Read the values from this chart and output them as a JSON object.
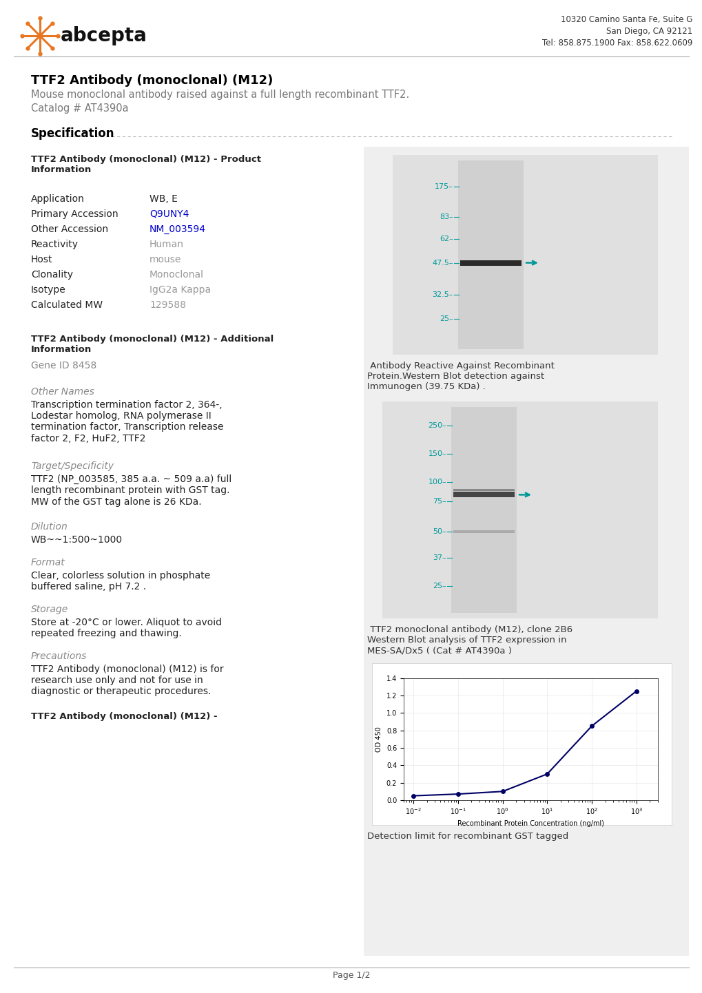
{
  "page_width": 10.2,
  "page_height": 14.42,
  "bg_color": "#ffffff",
  "header": {
    "logo_text": "abcepta",
    "address_line1": "10320 Camino Santa Fe, Suite G",
    "address_line2": "San Diego, CA 92121",
    "address_line3": "Tel: 858.875.1900 Fax: 858.622.0609"
  },
  "title": "TTF2 Antibody (monoclonal) (M12)",
  "subtitle": "Mouse monoclonal antibody raised against a full length recombinant TTF2.",
  "catalog": "Catalog # AT4390a",
  "section_title": "Specification",
  "left_col": {
    "product_info_header": "TTF2 Antibody (monoclonal) (M12) - Product\nInformation",
    "fields": [
      [
        "Application",
        "WB, E"
      ],
      [
        "Primary Accession",
        "Q9UNY4"
      ],
      [
        "Other Accession",
        "NM_003594"
      ],
      [
        "Reactivity",
        "Human"
      ],
      [
        "Host",
        "mouse"
      ],
      [
        "Clonality",
        "Monoclonal"
      ],
      [
        "Isotype",
        "IgG2a Kappa"
      ],
      [
        "Calculated MW",
        "129588"
      ]
    ],
    "link_fields": [
      "Primary Accession",
      "Other Accession"
    ],
    "additional_header": "TTF2 Antibody (monoclonal) (M12) - Additional\nInformation",
    "gene_id_label": "Gene ID",
    "gene_id_value": "8458",
    "other_names_header": "Other Names",
    "other_names_text": "Transcription termination factor 2, 364-,\nLodestar homolog, RNA polymerase II\ntermination factor, Transcription release\nfactor 2, F2, HuF2, TTF2",
    "target_header": "Target/Specificity",
    "target_text": "TTF2 (NP_003585, 385 a.a. ~ 509 a.a) full\nlength recombinant protein with GST tag.\nMW of the GST tag alone is 26 KDa.",
    "dilution_header": "Dilution",
    "dilution_text": "WB~~1:500~1000",
    "format_header": "Format",
    "format_text": "Clear, colorless solution in phosphate\nbuffered saline, pH 7.2 .",
    "storage_header": "Storage",
    "storage_text": "Store at -20°C or lower. Aliquot to avoid\nrepeated freezing and thawing.",
    "precautions_header": "Precautions",
    "precautions_text": "TTF2 Antibody (monoclonal) (M12) is for\nresearch use only and not for use in\ndiagnostic or therapeutic procedures.",
    "bottom_header": "TTF2 Antibody (monoclonal) (M12) -"
  },
  "right_col": {
    "wb_image1_caption_full": " Antibody Reactive Against Recombinant\nProtein.Western Blot detection against\nImmunogen (39.75 KDa) .",
    "wb_image2_caption": " TTF2 monoclonal antibody (M12), clone 2B6\nWestern Blot analysis of TTF2 expression in\nMES-SA/Dx5 ( (Cat # AT4390a )",
    "elisa_caption": "Detection limit for recombinant GST tagged"
  },
  "elisa_conc": [
    0.01,
    0.1,
    1,
    10,
    100,
    1000
  ],
  "elisa_od": [
    0.05,
    0.07,
    0.1,
    0.3,
    0.85,
    1.25
  ],
  "footer_text": "Page 1/2",
  "teal_color": "#009999",
  "orange_color": "#E87722",
  "blue_link_color": "#0000CC"
}
